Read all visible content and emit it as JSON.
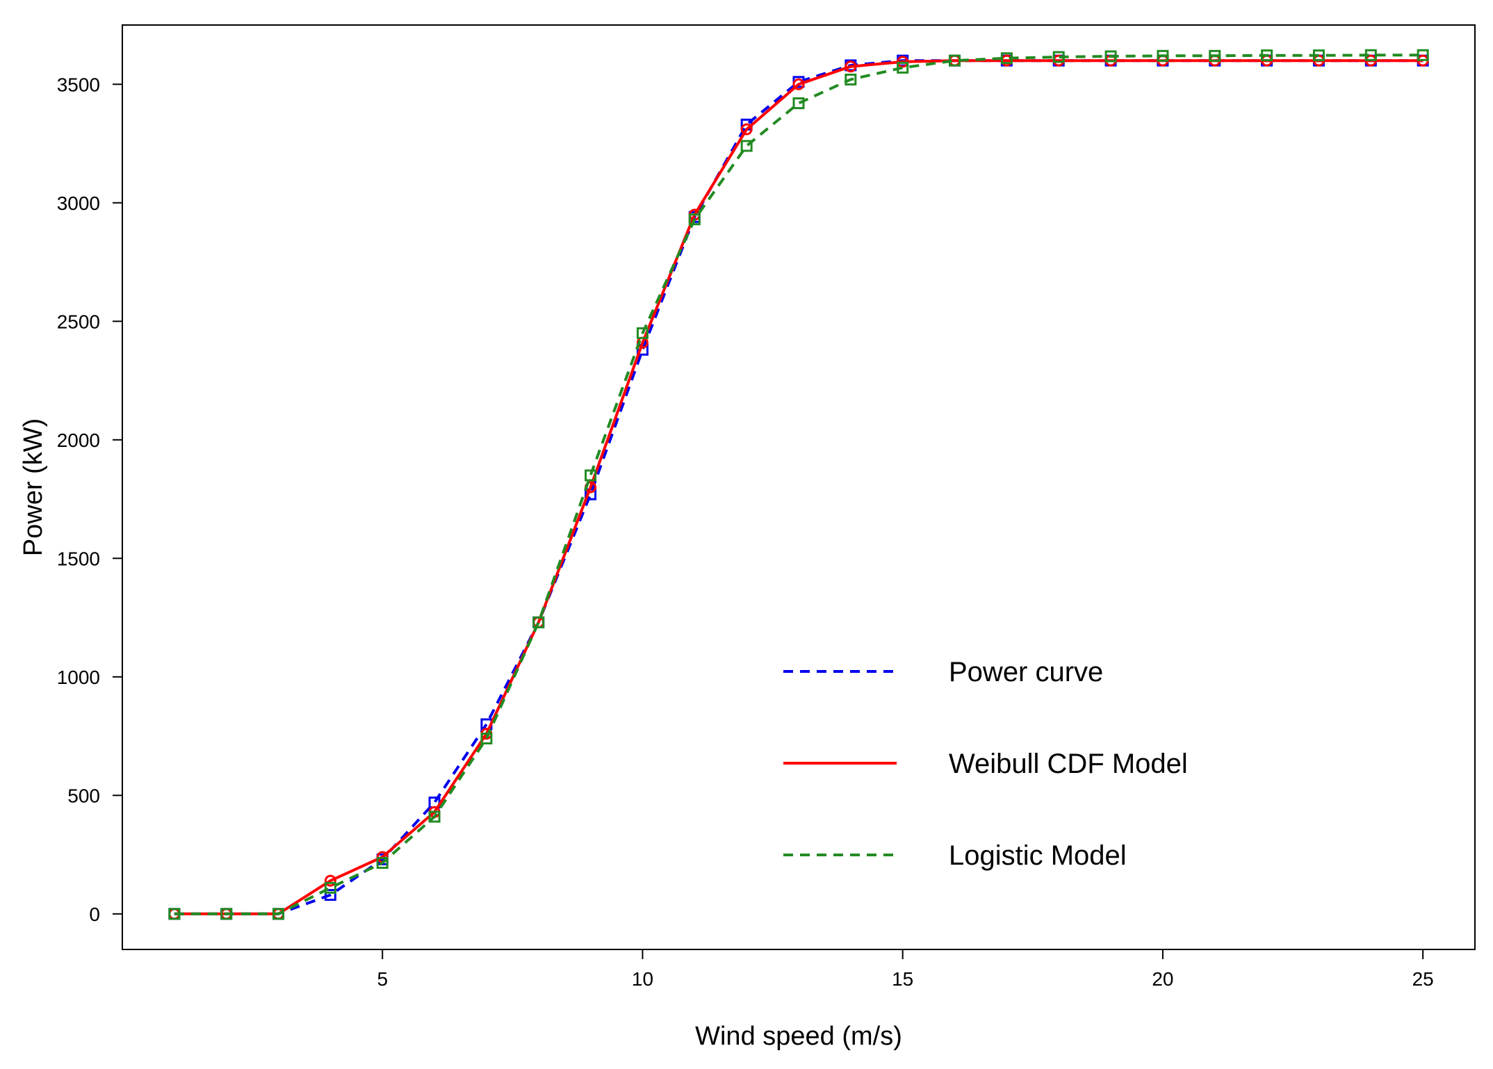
{
  "chart_data": {
    "type": "line",
    "title": "",
    "xlabel": "Wind speed (m/s)",
    "ylabel": "Power (kW)",
    "xlim": [
      0,
      26
    ],
    "ylim": [
      -150,
      3750
    ],
    "x_ticks": [
      5,
      10,
      15,
      20,
      25
    ],
    "y_ticks": [
      0,
      500,
      1000,
      1500,
      2000,
      2500,
      3000,
      3500
    ],
    "x_tick_labels": [
      "5",
      "10",
      "15",
      "20",
      "25"
    ],
    "y_tick_labels": [
      "0",
      "500",
      "1000",
      "1500",
      "2000",
      "2500",
      "3000",
      "3500"
    ],
    "grid": false,
    "legend_position": "lower-right",
    "x": [
      1,
      2,
      3,
      4,
      5,
      6,
      7,
      8,
      9,
      10,
      11,
      12,
      13,
      14,
      15,
      16,
      17,
      18,
      19,
      20,
      21,
      22,
      23,
      24,
      25
    ],
    "series": [
      {
        "name": "Power curve",
        "color": "#0000ee",
        "line_style": "dashed",
        "marker": "square",
        "values": [
          0,
          0,
          0,
          80,
          230,
          470,
          800,
          1230,
          1770,
          2380,
          2940,
          3330,
          3510,
          3580,
          3600,
          3600,
          3600,
          3600,
          3600,
          3600,
          3600,
          3600,
          3600,
          3600,
          3600
        ]
      },
      {
        "name": "Weibull CDF Model",
        "color": "#ff0000",
        "line_style": "solid",
        "marker": "circle",
        "values": [
          0,
          0,
          0,
          140,
          240,
          430,
          760,
          1230,
          1800,
          2410,
          2950,
          3310,
          3500,
          3575,
          3595,
          3600,
          3600,
          3600,
          3600,
          3600,
          3600,
          3600,
          3600,
          3600,
          3600
        ]
      },
      {
        "name": "Logistic Model",
        "color": "#228b22",
        "line_style": "dashed",
        "marker": "square",
        "values": [
          0,
          0,
          0,
          110,
          215,
          410,
          740,
          1230,
          1850,
          2450,
          2930,
          3240,
          3420,
          3520,
          3570,
          3600,
          3610,
          3615,
          3618,
          3620,
          3620,
          3622,
          3622,
          3623,
          3623
        ]
      }
    ]
  }
}
